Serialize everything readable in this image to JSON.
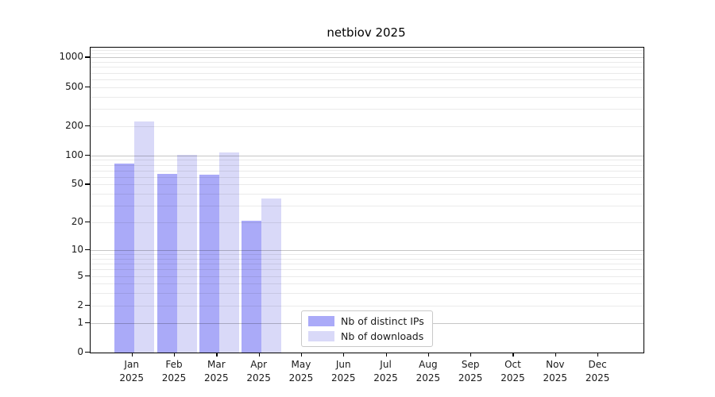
{
  "title": "netbiov 2025",
  "chart_data": {
    "type": "bar",
    "title": "netbiov 2025",
    "categories": [
      "Jan",
      "Feb",
      "Mar",
      "Apr",
      "May",
      "Jun",
      "Jul",
      "Aug",
      "Sep",
      "Oct",
      "Nov",
      "Dec"
    ],
    "year_label": "2025",
    "series": [
      {
        "name": "Nb of distinct IPs",
        "color": "#aaaaf8",
        "values": [
          82,
          65,
          63,
          21,
          0,
          0,
          0,
          0,
          0,
          0,
          0,
          0
        ]
      },
      {
        "name": "Nb of downloads",
        "color": "#d9d9f8",
        "values": [
          223,
          101,
          108,
          36,
          0,
          0,
          0,
          0,
          0,
          0,
          0,
          0
        ]
      }
    ],
    "xlabel": "",
    "ylabel": "",
    "y_scale": "log10(value+1), zero pinned to baseline",
    "y_ticks": [
      0,
      1,
      2,
      5,
      10,
      20,
      50,
      100,
      200,
      500,
      1000
    ],
    "ylim": [
      0,
      1258
    ],
    "grid": "horizontal, minor light gray + major gray at powers of 10",
    "legend_position": "lower center",
    "colors": {
      "distinct_ips": "#aaaaf8",
      "downloads": "#d9d9f8",
      "grid_minor": "#eaeaea",
      "grid_major": "#c6c6c6",
      "spine": "#000000",
      "background": "#ffffff"
    }
  }
}
